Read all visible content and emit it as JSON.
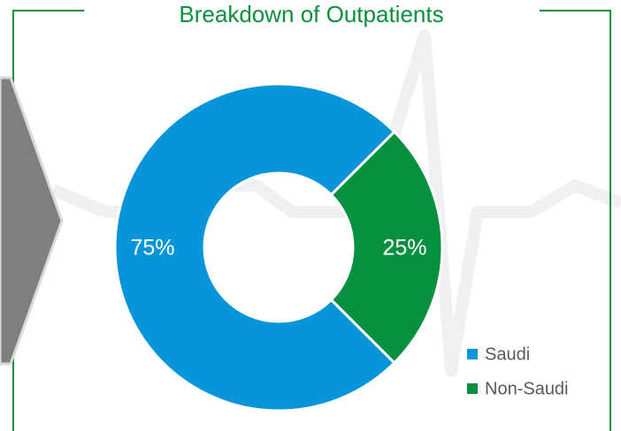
{
  "chart_data": {
    "type": "donut",
    "title": "Breakdown of Outpatients",
    "categories": [
      "Saudi",
      "Non-Saudi"
    ],
    "values": [
      75,
      25
    ],
    "value_labels": [
      "75%",
      "25%"
    ],
    "colors": [
      "#0795d9",
      "#079040"
    ]
  }
}
